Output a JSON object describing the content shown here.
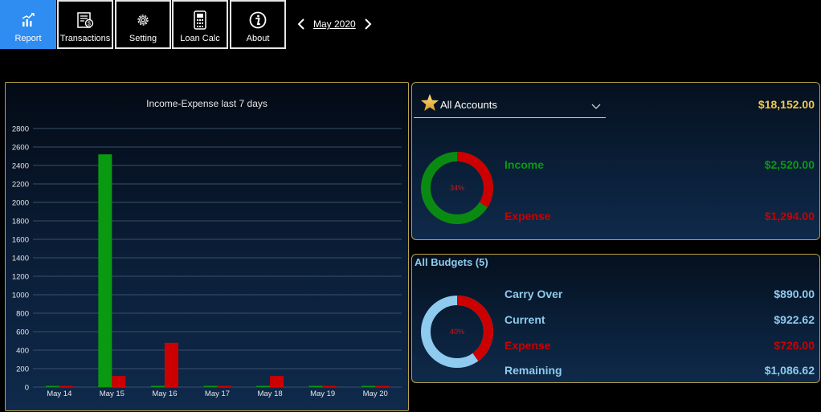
{
  "toolbar": {
    "buttons": [
      {
        "label": "Report",
        "icon": "bar-chart-icon",
        "active": true
      },
      {
        "label": "Transactions",
        "icon": "transactions-icon",
        "active": false
      },
      {
        "label": "Setting",
        "icon": "gear-icon",
        "active": false
      },
      {
        "label": "Loan Calc",
        "icon": "calculator-icon",
        "active": false
      },
      {
        "label": "About",
        "icon": "info-icon",
        "active": false
      }
    ],
    "month": "May 2020"
  },
  "chart_data": {
    "type": "bar",
    "title": "Income-Expense last 7 days",
    "categories": [
      "May 14",
      "May 15",
      "May 16",
      "May 17",
      "May 18",
      "May 19",
      "May 20"
    ],
    "series": [
      {
        "values": [
          0,
          2520,
          0,
          0,
          0,
          0,
          0
        ],
        "color": "#0a9a12"
      },
      {
        "values": [
          0,
          120,
          480,
          0,
          120,
          0,
          0
        ],
        "color": "#cc0000"
      }
    ],
    "ylim": [
      0,
      2800
    ],
    "yticks": [
      0,
      200,
      400,
      600,
      800,
      1000,
      1200,
      1400,
      1600,
      1800,
      2000,
      2200,
      2400,
      2600,
      2800
    ],
    "grid": true
  },
  "accounts": {
    "selected": "All Accounts",
    "total": "$18,152.00",
    "donut_percent": "34%",
    "donut_fraction": 0.34,
    "income_label": "Income",
    "income_value": "$2,520.00",
    "expense_label": "Expense",
    "expense_value": "$1,294.00"
  },
  "budgets": {
    "title": "All Budgets (5)",
    "donut_percent": "40%",
    "donut_fraction": 0.4,
    "carry_over_label": "Carry Over",
    "carry_over_value": "$890.00",
    "current_label": "Current",
    "current_value": "$922.62",
    "expense_label": "Expense",
    "expense_value": "$726.00",
    "remaining_label": "Remaining",
    "remaining_value": "$1,086.62"
  },
  "colors": {
    "accent": "#2f8cf0",
    "income": "#0a9a12",
    "expense": "#cc0000",
    "gold": "#f2c94c",
    "light_blue": "#8ecbee",
    "panel_border": "#b9a24a"
  }
}
